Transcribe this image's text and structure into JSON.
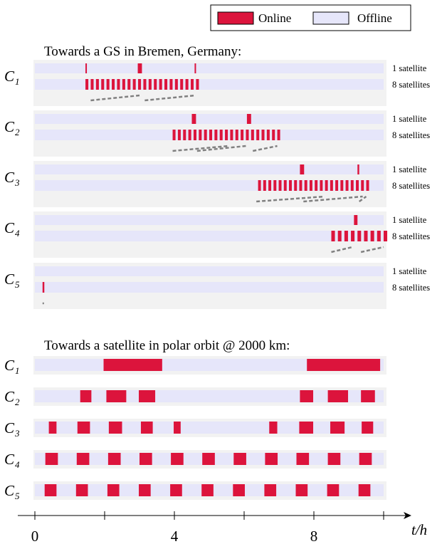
{
  "colors": {
    "online": "#dc143c",
    "offline": "#e6e6fa",
    "panel": "#f2f2f2",
    "dash": "#808080",
    "axis": "#000000"
  },
  "legend": {
    "online_label": "Online",
    "offline_label": "Offline"
  },
  "chart_data": [
    {
      "type": "timeline",
      "title": "Towards a GS in Bremen, Germany:",
      "x_unit": "t/h",
      "xlim": [
        0,
        10
      ],
      "row_labels": [
        "1 satellite",
        "8 satellites"
      ],
      "groups": [
        {
          "label": "C",
          "sub": "1",
          "single": [
            [
              1.45,
              1.49
            ],
            [
              2.95,
              3.07
            ],
            [
              4.58,
              4.62
            ]
          ],
          "multi_start": 1.45,
          "multi_end": 4.62,
          "multi_count": 22,
          "dash_lines": [
            [
              1.6,
              3.0,
              3.15,
              4.6
            ]
          ]
        },
        {
          "label": "C",
          "sub": "2",
          "single": [
            [
              4.5,
              4.62
            ],
            [
              6.08,
              6.2
            ]
          ],
          "multi_start": 3.95,
          "multi_end": 6.95,
          "multi_count": 21,
          "dash_lines": [
            [
              3.95,
              5.55,
              4.65,
              6.05
            ],
            [
              6.25,
              6.95,
              6.95,
              6.95
            ]
          ]
        },
        {
          "label": "C",
          "sub": "3",
          "single": [
            [
              7.6,
              7.72
            ],
            [
              9.25,
              9.3
            ]
          ],
          "multi_start": 6.4,
          "multi_end": 9.5,
          "multi_count": 22,
          "dash_lines": [
            [
              6.35,
              8.3,
              7.7,
              9.4
            ],
            [
              9.3,
              9.5,
              9.45,
              9.45
            ]
          ]
        },
        {
          "label": "C",
          "sub": "4",
          "single": [
            [
              9.15,
              9.25
            ]
          ],
          "multi_start": 8.5,
          "multi_end": 10.0,
          "multi_count": 9,
          "dash_lines": [
            [
              8.5,
              9.1,
              9.35,
              10.0
            ]
          ]
        },
        {
          "label": "C",
          "sub": "5",
          "single": [],
          "multi_start": 0.22,
          "multi_end": 0.28,
          "multi_count": 1,
          "dash_lines": [
            [
              0.22,
              0.22,
              0.22,
              0.22
            ]
          ]
        }
      ]
    },
    {
      "type": "timeline",
      "title": "Towards a satellite in polar orbit @ 2000 km:",
      "x_unit": "t/h",
      "xlim": [
        0,
        10
      ],
      "xticks": [
        0,
        4,
        8
      ],
      "xlabel": "t/h",
      "groups": [
        {
          "label": "C",
          "sub": "1",
          "segments": [
            [
              1.97,
              3.65
            ],
            [
              7.8,
              9.9
            ]
          ]
        },
        {
          "label": "C",
          "sub": "2",
          "segments": [
            [
              1.3,
              1.62
            ],
            [
              2.05,
              2.62
            ],
            [
              2.98,
              3.45
            ],
            [
              7.6,
              7.98
            ],
            [
              8.4,
              8.98
            ],
            [
              9.35,
              9.75
            ]
          ]
        },
        {
          "label": "C",
          "sub": "3",
          "segments": [
            [
              0.4,
              0.62
            ],
            [
              1.22,
              1.58
            ],
            [
              2.12,
              2.5
            ],
            [
              3.04,
              3.38
            ],
            [
              3.98,
              4.18
            ],
            [
              6.72,
              6.95
            ],
            [
              7.58,
              7.98
            ],
            [
              8.47,
              8.88
            ],
            [
              9.37,
              9.7
            ]
          ]
        },
        {
          "label": "C",
          "sub": "4",
          "segments": [
            [
              0.3,
              0.66
            ],
            [
              1.2,
              1.56
            ],
            [
              2.1,
              2.46
            ],
            [
              3.0,
              3.36
            ],
            [
              3.9,
              4.26
            ],
            [
              4.8,
              5.16
            ],
            [
              5.7,
              6.06
            ],
            [
              6.6,
              6.96
            ],
            [
              7.5,
              7.86
            ],
            [
              8.4,
              8.76
            ],
            [
              9.3,
              9.66
            ]
          ]
        },
        {
          "label": "C",
          "sub": "5",
          "segments": [
            [
              0.28,
              0.62
            ],
            [
              1.18,
              1.52
            ],
            [
              2.08,
              2.42
            ],
            [
              2.98,
              3.32
            ],
            [
              3.88,
              4.22
            ],
            [
              4.78,
              5.12
            ],
            [
              5.68,
              6.02
            ],
            [
              6.58,
              6.92
            ],
            [
              7.48,
              7.82
            ],
            [
              8.38,
              8.72
            ],
            [
              9.28,
              9.62
            ]
          ]
        }
      ]
    }
  ]
}
